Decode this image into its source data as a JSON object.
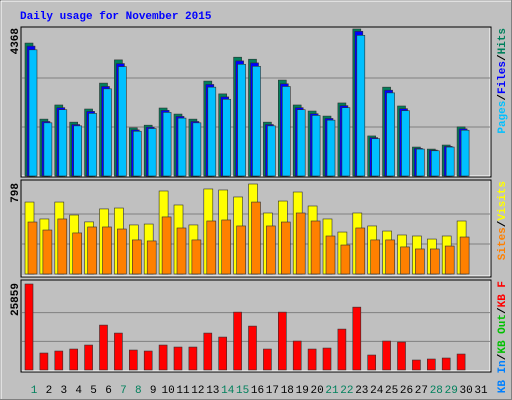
{
  "legend_separator": "/",
  "chart_data": [
    {
      "type": "bar",
      "title": "Daily usage for November 2015",
      "ylim": [
        0,
        4368
      ],
      "yticks": [
        4368
      ],
      "grid_divisions": 3,
      "series": [
        {
          "name": "Hits",
          "color": "#00805c",
          "values": [
            3950,
            1690,
            2110,
            1600,
            1990,
            2760,
            3450,
            1430,
            1510,
            2020,
            1840,
            1690,
            2820,
            2440,
            3530,
            3470,
            1600,
            2850,
            2110,
            1930,
            1780,
            2170,
            4368,
            1190,
            2640,
            2080,
            860,
            800,
            920,
            1460,
            null
          ]
        },
        {
          "name": "Files",
          "color": "#0000ff",
          "values": [
            3860,
            1620,
            2030,
            1530,
            1920,
            2660,
            3340,
            1370,
            1450,
            1950,
            1770,
            1620,
            2720,
            2350,
            3420,
            3360,
            1530,
            2740,
            2030,
            1850,
            1710,
            2090,
            4300,
            1140,
            2550,
            2000,
            820,
            770,
            880,
            1400,
            null
          ]
        },
        {
          "name": "Pages",
          "color": "#00c0ff",
          "values": [
            3750,
            1580,
            1970,
            1490,
            1860,
            2590,
            3250,
            1330,
            1410,
            1890,
            1720,
            1580,
            2640,
            2280,
            3320,
            3260,
            1490,
            2660,
            1970,
            1800,
            1660,
            2030,
            4180,
            1110,
            2470,
            1940,
            800,
            750,
            860,
            1360,
            null
          ]
        }
      ]
    },
    {
      "type": "bar",
      "ylim": [
        0,
        798
      ],
      "yticks": [
        798
      ],
      "grid_divisions": 3,
      "series": [
        {
          "name": "Visits",
          "color": "#ffff00",
          "values": [
            638,
            488,
            638,
            523,
            462,
            577,
            585,
            435,
            443,
            736,
            612,
            435,
            754,
            745,
            683,
            798,
            541,
            647,
            727,
            603,
            488,
            372,
            541,
            426,
            381,
            346,
            337,
            310,
            337,
            470,
            null
          ]
        },
        {
          "name": "Sites",
          "color": "#ff8000",
          "values": [
            461,
            390,
            488,
            364,
            417,
            417,
            399,
            302,
            293,
            506,
            408,
            302,
            470,
            479,
            426,
            638,
            426,
            461,
            541,
            470,
            337,
            257,
            408,
            302,
            302,
            240,
            222,
            222,
            248,
            328,
            null
          ]
        }
      ]
    },
    {
      "type": "bar",
      "ylim": [
        0,
        25859
      ],
      "yticks": [
        25859
      ],
      "grid_divisions": 3,
      "weekend_color": "#00805c",
      "weekends": [
        0,
        6,
        7,
        13,
        14,
        20,
        21,
        27,
        28
      ],
      "categories": [
        "1",
        "2",
        "3",
        "4",
        "5",
        "6",
        "7",
        "8",
        "9",
        "10",
        "11",
        "12",
        "13",
        "14",
        "15",
        "16",
        "17",
        "18",
        "19",
        "20",
        "21",
        "22",
        "23",
        "24",
        "25",
        "26",
        "27",
        "28",
        "29",
        "30",
        "31"
      ],
      "series": [
        {
          "name": "KB F",
          "color": "#ff0000",
          "values": [
            25859,
            5100,
            5700,
            6300,
            7500,
            13500,
            11100,
            6000,
            5700,
            7500,
            6900,
            6900,
            11100,
            9900,
            17400,
            13200,
            6300,
            17400,
            8700,
            6300,
            6600,
            12300,
            18900,
            4500,
            8700,
            8400,
            3000,
            3300,
            3600,
            4800,
            null
          ]
        },
        {
          "name": "KB Out",
          "color": "#00c000",
          "values": [
            null,
            null,
            null,
            null,
            null,
            null,
            null,
            null,
            null,
            null,
            null,
            null,
            null,
            null,
            null,
            null,
            null,
            null,
            null,
            null,
            null,
            null,
            null,
            null,
            null,
            null,
            null,
            null,
            null,
            null,
            null
          ]
        },
        {
          "name": "KB In",
          "color": "#0080ff",
          "values": [
            null,
            null,
            null,
            null,
            null,
            null,
            null,
            null,
            null,
            null,
            null,
            null,
            null,
            null,
            null,
            null,
            null,
            null,
            null,
            null,
            null,
            null,
            null,
            null,
            null,
            null,
            null,
            null,
            null,
            null,
            null
          ]
        }
      ]
    }
  ]
}
